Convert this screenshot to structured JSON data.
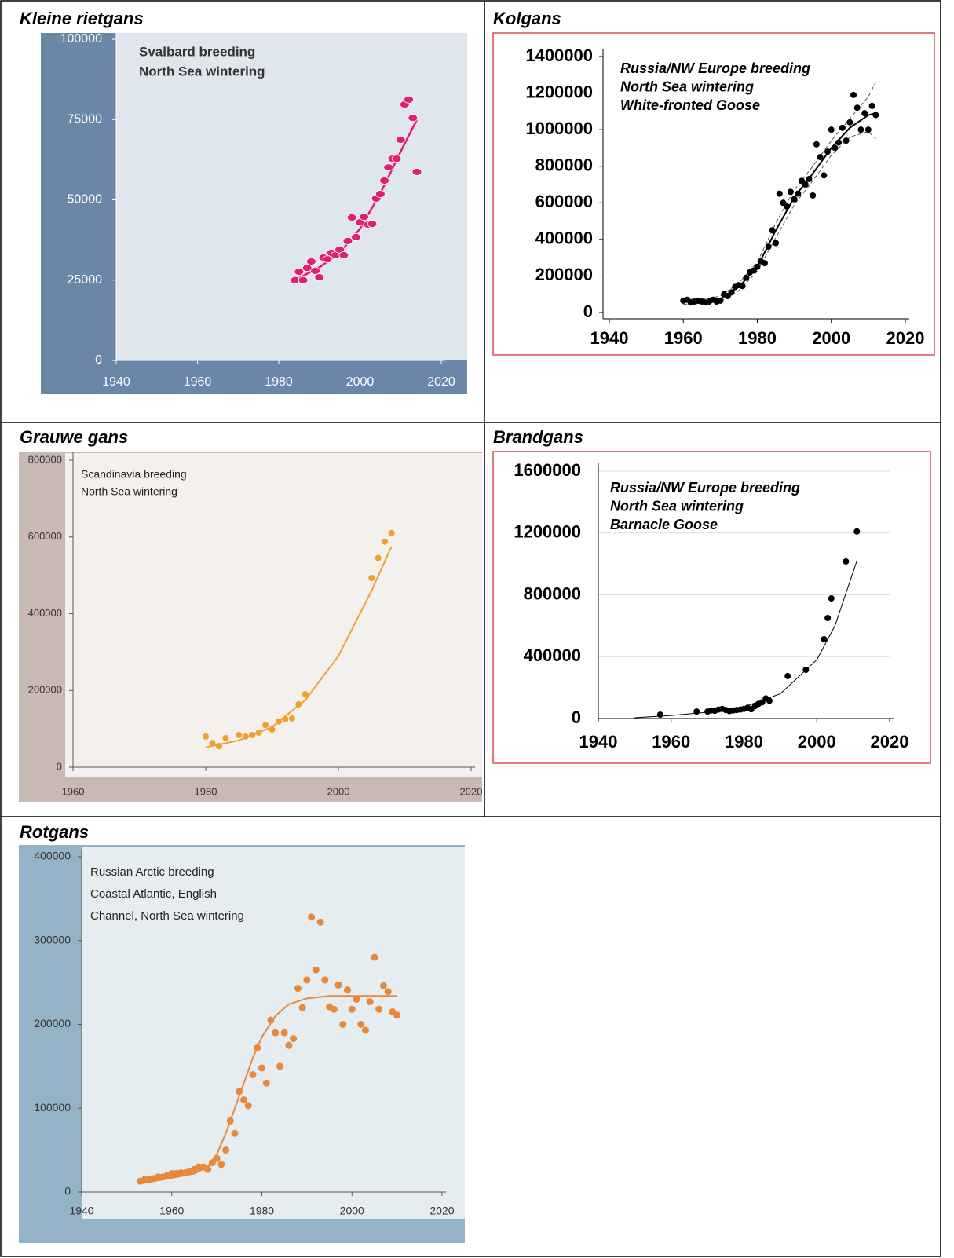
{
  "chart_data": [
    {
      "type": "scatter",
      "title": "Kleine rietgans",
      "annotations": [
        "Svalbard breeding",
        "North Sea wintering"
      ],
      "x": [
        1984,
        1985,
        1986,
        1987,
        1988,
        1989,
        1990,
        1991,
        1992,
        1993,
        1994,
        1995,
        1996,
        1997,
        1998,
        1999,
        2000,
        2001,
        2002,
        2003,
        2004,
        2005,
        2006,
        2007,
        2008,
        2009,
        2010,
        2011,
        2012,
        2013,
        2014
      ],
      "values": [
        25000,
        27600,
        25000,
        28800,
        30800,
        27900,
        25900,
        32000,
        31500,
        33500,
        32800,
        34500,
        32800,
        37200,
        44500,
        38400,
        43000,
        44700,
        42300,
        42500,
        50400,
        51800,
        56000,
        60100,
        62800,
        62800,
        68700,
        79700,
        81200,
        75500,
        58700
      ],
      "color": "#e0206a",
      "fit": {
        "x": [
          1984,
          1990,
          1995,
          2000,
          2005,
          2010,
          2014
        ],
        "values": [
          25000,
          29000,
          33500,
          41000,
          52000,
          65000,
          75000
        ]
      },
      "xlim": [
        1940,
        2020
      ],
      "ylim": [
        0,
        100000
      ],
      "xticks": [
        1940,
        1960,
        1980,
        2000,
        2020
      ],
      "yticks": [
        0,
        25000,
        50000,
        75000,
        100000
      ],
      "grid": false
    },
    {
      "type": "scatter",
      "title": "Kolgans",
      "annotations": [
        "Russia/NW Europe breeding",
        "North Sea wintering",
        "White-fronted  Goose"
      ],
      "x": [
        1960,
        1961,
        1962,
        1963,
        1964,
        1965,
        1966,
        1967,
        1968,
        1969,
        1970,
        1971,
        1972,
        1973,
        1974,
        1975,
        1976,
        1977,
        1978,
        1979,
        1980,
        1981,
        1982,
        1983,
        1984,
        1985,
        1986,
        1987,
        1988,
        1989,
        1990,
        1991,
        1992,
        1993,
        1994,
        1995,
        1996,
        1997,
        1998,
        1999,
        2000,
        2001,
        2002,
        2003,
        2004,
        2005,
        2006,
        2007,
        2008,
        2009,
        2010,
        2011,
        2012
      ],
      "values": [
        65000,
        70000,
        55000,
        60000,
        65000,
        60000,
        55000,
        60000,
        70000,
        60000,
        65000,
        100000,
        90000,
        110000,
        140000,
        150000,
        145000,
        190000,
        220000,
        230000,
        250000,
        280000,
        270000,
        360000,
        450000,
        380000,
        650000,
        600000,
        580000,
        660000,
        620000,
        650000,
        720000,
        700000,
        730000,
        640000,
        920000,
        850000,
        750000,
        880000,
        1000000,
        900000,
        930000,
        1010000,
        940000,
        1040000,
        1190000,
        1120000,
        1000000,
        1090000,
        1000000,
        1130000,
        1080000
      ],
      "color": "#000000",
      "fit": {
        "x": [
          1960,
          1965,
          1970,
          1975,
          1980,
          1985,
          1990,
          1995,
          2000,
          2005,
          2010,
          2012
        ],
        "values": [
          60000,
          60000,
          75000,
          140000,
          250000,
          450000,
          630000,
          760000,
          900000,
          1010000,
          1080000,
          1090000
        ],
        "lower": [
          45000,
          50000,
          60000,
          120000,
          225000,
          410000,
          590000,
          720000,
          860000,
          960000,
          990000,
          950000
        ],
        "upper": [
          75000,
          70000,
          90000,
          160000,
          275000,
          490000,
          670000,
          800000,
          940000,
          1060000,
          1180000,
          1260000
        ]
      },
      "xlim": [
        1940,
        2020
      ],
      "ylim": [
        0,
        1400000
      ],
      "xticks": [
        1940,
        1960,
        1980,
        2000,
        2020
      ],
      "yticks": [
        0,
        200000,
        400000,
        600000,
        800000,
        1000000,
        1200000,
        1400000
      ],
      "grid": false
    },
    {
      "type": "scatter",
      "title": "Grauwe gans",
      "annotations": [
        "Scandinavia breeding",
        "North Sea wintering"
      ],
      "x": [
        1980,
        1981,
        1982,
        1983,
        1985,
        1986,
        1987,
        1988,
        1989,
        1990,
        1991,
        1992,
        1993,
        1994,
        1995,
        2005,
        2006,
        2007,
        2008
      ],
      "values": [
        80000,
        63000,
        55000,
        76000,
        84000,
        80000,
        84000,
        90000,
        110000,
        98000,
        119000,
        125000,
        127000,
        164000,
        190000,
        493000,
        545000,
        588000,
        610000
      ],
      "color": "#f0a030",
      "fit": {
        "x": [
          1980,
          1985,
          1990,
          1995,
          2000,
          2005,
          2008
        ],
        "values": [
          52000,
          70000,
          105000,
          175000,
          290000,
          460000,
          575000
        ]
      },
      "xlim": [
        1960,
        2020
      ],
      "ylim": [
        0,
        800000
      ],
      "xticks": [
        1960,
        1980,
        2000,
        2020
      ],
      "yticks": [
        0,
        200000,
        400000,
        600000,
        800000
      ],
      "grid": false
    },
    {
      "type": "scatter",
      "title": "Brandgans",
      "annotations": [
        "Russia/NW Europe breeding",
        "North Sea wintering",
        "Barnacle Goose"
      ],
      "x": [
        1957,
        1967,
        1970,
        1971,
        1972,
        1973,
        1974,
        1975,
        1976,
        1977,
        1978,
        1979,
        1980,
        1981,
        1982,
        1983,
        1984,
        1985,
        1986,
        1987,
        1992,
        1997,
        2002,
        2003,
        2004,
        2008,
        2011
      ],
      "values": [
        25000,
        45000,
        45000,
        52000,
        50000,
        58000,
        62000,
        55000,
        48000,
        52000,
        55000,
        58000,
        62000,
        70000,
        60000,
        80000,
        95000,
        105000,
        130000,
        115000,
        275000,
        315000,
        513000,
        650000,
        777000,
        1016000,
        1210000
      ],
      "color": "#000000",
      "fit": {
        "x": [
          1950,
          1960,
          1970,
          1980,
          1990,
          2000,
          2005,
          2011
        ],
        "values": [
          5000,
          20000,
          40000,
          75000,
          160000,
          380000,
          600000,
          1020000
        ]
      },
      "xlim": [
        1940,
        2020
      ],
      "ylim": [
        0,
        1600000
      ],
      "xticks": [
        1940,
        1960,
        1980,
        2000,
        2020
      ],
      "yticks": [
        0,
        400000,
        800000,
        1200000,
        1600000
      ],
      "grid": true
    },
    {
      "type": "scatter",
      "title": "Rotgans",
      "annotations": [
        "Russian Arctic breeding",
        "Coastal Atlantic, English",
        "Channel, North Sea wintering"
      ],
      "x": [
        1953,
        1954,
        1955,
        1956,
        1957,
        1958,
        1959,
        1960,
        1961,
        1962,
        1963,
        1964,
        1965,
        1966,
        1967,
        1968,
        1969,
        1970,
        1971,
        1972,
        1973,
        1974,
        1975,
        1976,
        1977,
        1978,
        1979,
        1980,
        1981,
        1982,
        1983,
        1984,
        1985,
        1986,
        1987,
        1988,
        1989,
        1990,
        1991,
        1992,
        1993,
        1994,
        1995,
        1996,
        1997,
        1998,
        1999,
        2000,
        2001,
        2002,
        2003,
        2004,
        2005,
        2006,
        2007,
        2008,
        2009,
        2010
      ],
      "values": [
        13000,
        15000,
        15000,
        16000,
        18000,
        18000,
        20000,
        22000,
        22000,
        23000,
        23000,
        25000,
        27000,
        30000,
        30000,
        27000,
        35000,
        40000,
        33000,
        50000,
        85000,
        70000,
        120000,
        110000,
        103000,
        140000,
        172000,
        148000,
        130000,
        205000,
        190000,
        150000,
        190000,
        175000,
        183000,
        243000,
        220000,
        253000,
        328000,
        265000,
        322000,
        253000,
        221000,
        218000,
        247000,
        200000,
        241000,
        218000,
        230000,
        200000,
        193000,
        227000,
        280000,
        218000,
        246000,
        239000,
        215000,
        211000
      ],
      "color": "#e8883a",
      "fit": {
        "x": [
          1953,
          1960,
          1965,
          1968,
          1970,
          1972,
          1974,
          1976,
          1978,
          1980,
          1983,
          1986,
          1990,
          1995,
          2000,
          2010
        ],
        "values": [
          10000,
          17000,
          22000,
          30000,
          45000,
          70000,
          100000,
          130000,
          160000,
          185000,
          210000,
          224000,
          231000,
          234000,
          234000,
          234000
        ]
      },
      "xlim": [
        1940,
        2020
      ],
      "ylim": [
        0,
        400000
      ],
      "xticks": [
        1940,
        1960,
        1980,
        2000,
        2020
      ],
      "yticks": [
        0,
        100000,
        200000,
        300000,
        400000
      ],
      "grid": false
    }
  ]
}
